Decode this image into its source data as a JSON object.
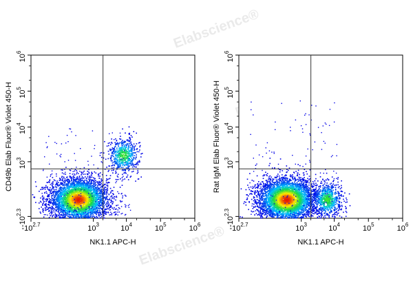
{
  "watermark": "Elabscience®",
  "chart_data": [
    {
      "type": "scatter",
      "subtype": "flow-cytometry-density-plot",
      "xlabel": "NK1.1 APC-H",
      "ylabel": "CD49b Elab Fluor® Violet 450-H",
      "x_ticks": [
        {
          "base": "-10",
          "exp": "2.7"
        },
        {
          "base": "10",
          "exp": "3"
        },
        {
          "base": "10",
          "exp": "4"
        },
        {
          "base": "10",
          "exp": "5"
        },
        {
          "base": "10",
          "exp": "6"
        }
      ],
      "y_ticks": [
        {
          "base": "10",
          "exp": "6"
        },
        {
          "base": "10",
          "exp": "5"
        },
        {
          "base": "10",
          "exp": "4"
        },
        {
          "base": "10",
          "exp": "3"
        },
        {
          "base": "-10",
          "exp": "2.3"
        }
      ],
      "gate": {
        "x": 2000,
        "y": 600
      },
      "populations": [
        {
          "name": "",
          "x_center": 300,
          "y_center": 0,
          "weight": 0.8
        },
        {
          "name": "",
          "x_center": 8000,
          "y_center": 1600,
          "weight": 0.12
        }
      ]
    },
    {
      "type": "scatter",
      "subtype": "flow-cytometry-density-plot",
      "xlabel": "NK1.1 APC-H",
      "ylabel": "Rat IgM Elab Fluor® Violet 450-H",
      "x_ticks": [
        {
          "base": "-10",
          "exp": "2.7"
        },
        {
          "base": "10",
          "exp": "3"
        },
        {
          "base": "10",
          "exp": "4"
        },
        {
          "base": "10",
          "exp": "5"
        },
        {
          "base": "10",
          "exp": "6"
        }
      ],
      "y_ticks": [
        {
          "base": "10",
          "exp": "6"
        },
        {
          "base": "10",
          "exp": "5"
        },
        {
          "base": "10",
          "exp": "4"
        },
        {
          "base": "10",
          "exp": "3"
        },
        {
          "base": "-10",
          "exp": "2.3"
        }
      ],
      "gate": {
        "x": 2000,
        "y": 600
      },
      "populations": [
        {
          "name": "",
          "x_center": 300,
          "y_center": 0,
          "weight": 0.8
        },
        {
          "name": "",
          "x_center": 6000,
          "y_center": 0,
          "weight": 0.15
        }
      ]
    }
  ]
}
